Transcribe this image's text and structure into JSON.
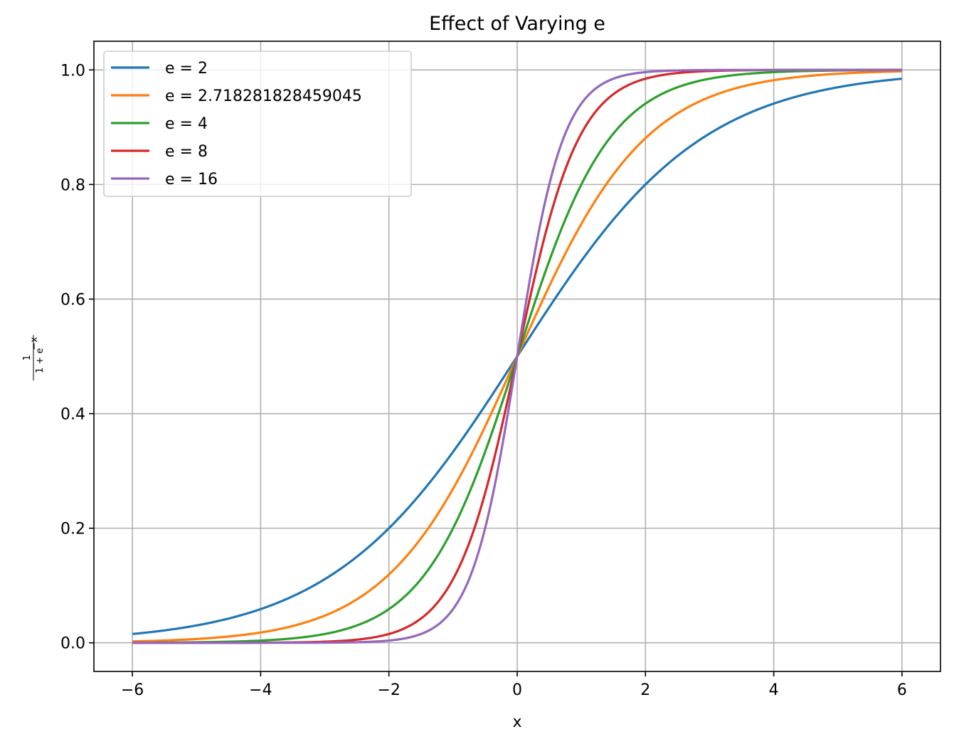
{
  "chart_data": {
    "type": "line",
    "title": "Effect of Varying e",
    "xlabel": "x",
    "ylabel": {
      "numerator": "1",
      "denominator_base": "1 + e",
      "denominator_exponent": "−x"
    },
    "xlim": [
      -6.6,
      6.6
    ],
    "ylim": [
      -0.05,
      1.05
    ],
    "x_ticks": [
      -6,
      -4,
      -2,
      0,
      2,
      4,
      6
    ],
    "x_tick_labels": [
      "−6",
      "−4",
      "−2",
      "0",
      "2",
      "4",
      "6"
    ],
    "y_ticks": [
      0.0,
      0.2,
      0.4,
      0.6,
      0.8,
      1.0
    ],
    "y_tick_labels": [
      "0.0",
      "0.2",
      "0.4",
      "0.6",
      "0.8",
      "1.0"
    ],
    "grid": true,
    "legend_position": "top-left",
    "x_domain": [
      -6,
      6
    ],
    "formula": "1 / (1 + base^(-x))",
    "series": [
      {
        "name": "e = 2",
        "base": 2,
        "color": "#1f77b4"
      },
      {
        "name": "e = 2.718281828459045",
        "base": 2.718281828459045,
        "color": "#ff7f0e"
      },
      {
        "name": "e = 4",
        "base": 4,
        "color": "#2ca02c"
      },
      {
        "name": "e = 8",
        "base": 8,
        "color": "#d62728"
      },
      {
        "name": "e = 16",
        "base": 16,
        "color": "#9467bd"
      }
    ]
  }
}
